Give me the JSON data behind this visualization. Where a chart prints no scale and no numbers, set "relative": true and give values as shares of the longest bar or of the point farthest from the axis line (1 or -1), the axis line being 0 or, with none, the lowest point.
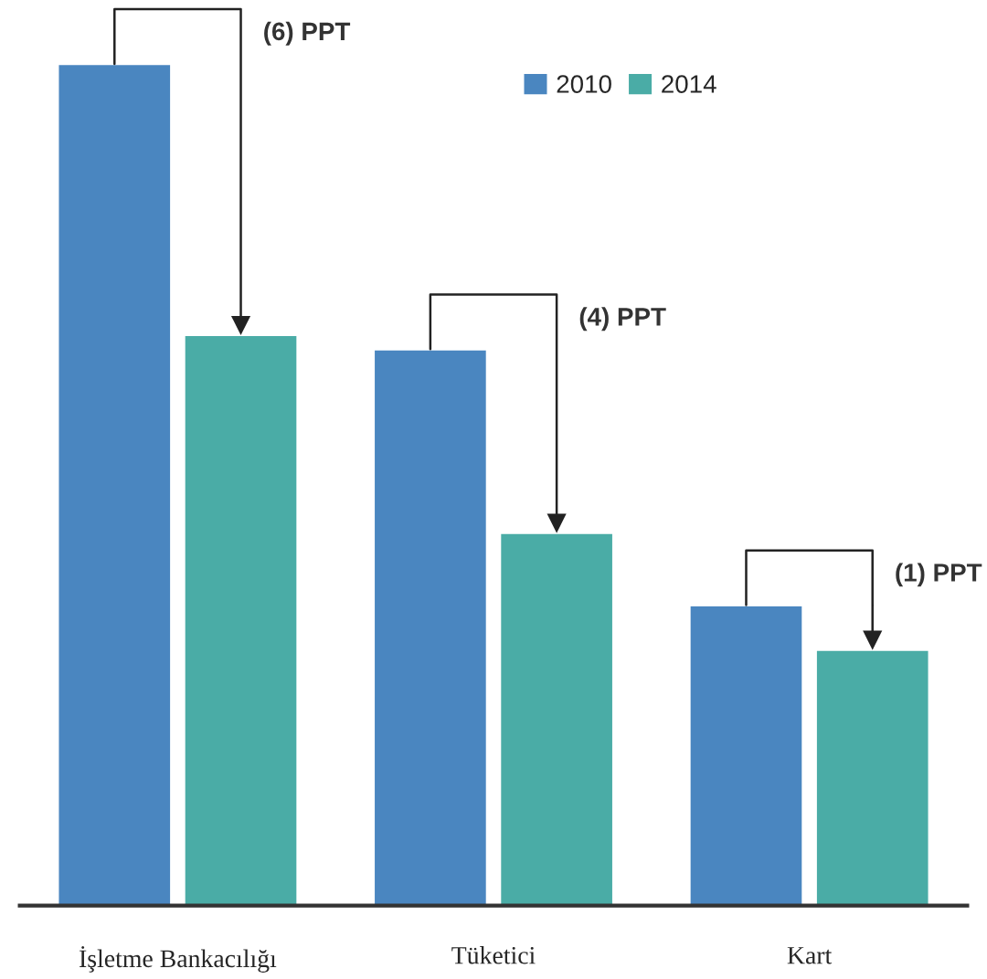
{
  "chart_data": {
    "type": "bar",
    "relative": true,
    "categories": [
      "İşletme Bankacılığı",
      "Tüketici",
      "Kart"
    ],
    "series": [
      {
        "name": "2010",
        "color": "#4a86c0",
        "values": [
          1,
          0.661,
          0.357
        ]
      },
      {
        "name": "2014",
        "color": "#4aaca6",
        "values": [
          0.678,
          0.443,
          0.304
        ]
      }
    ],
    "annotations": [
      "(6) PPT",
      "(4) PPT",
      "(1) PPT"
    ],
    "legend": "top right",
    "grid": false
  }
}
